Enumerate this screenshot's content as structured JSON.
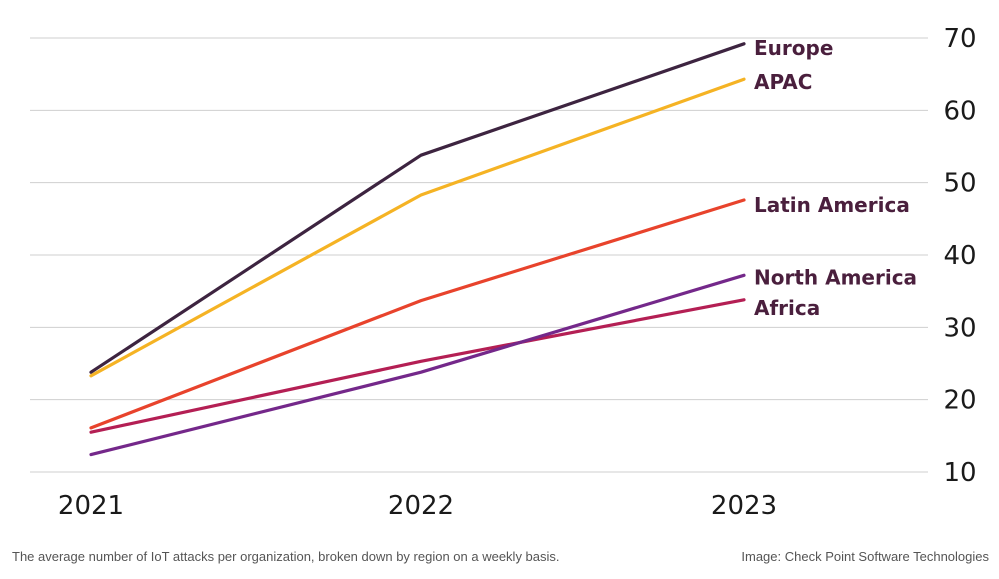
{
  "chart_data": {
    "type": "line",
    "x": [
      "2021",
      "2022",
      "2023"
    ],
    "ylim": [
      10,
      70
    ],
    "yticks": [
      10,
      20,
      30,
      40,
      50,
      60,
      70
    ],
    "grid": true,
    "y_axis_position": "right",
    "legend": "inline labels at line ends (right)",
    "series": [
      {
        "name": "Europe",
        "values": [
          23.8,
          53.8,
          69.2
        ],
        "color": "#3d2440"
      },
      {
        "name": "APAC",
        "values": [
          23.3,
          48.3,
          64.3
        ],
        "color": "#f5b324"
      },
      {
        "name": "Latin America",
        "values": [
          16.1,
          33.7,
          47.6
        ],
        "color": "#e8432c"
      },
      {
        "name": "North America",
        "values": [
          12.4,
          23.8,
          37.2
        ],
        "color": "#74288a"
      },
      {
        "name": "Africa",
        "values": [
          15.5,
          25.3,
          33.8
        ],
        "color": "#b41f54"
      }
    ],
    "label_color": "#4a1f3d"
  },
  "caption": "The average number of IoT attacks per organization, broken down by region on a weekly basis.",
  "credit": "Image: Check Point Software Technologies"
}
